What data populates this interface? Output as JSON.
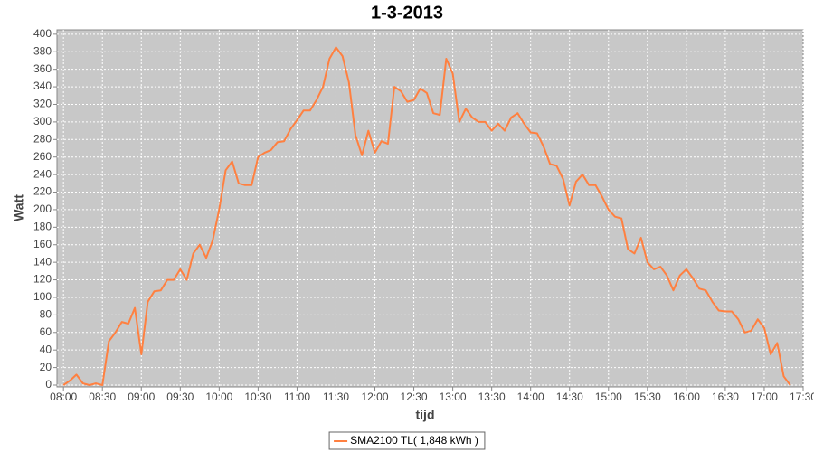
{
  "chart_data": {
    "type": "line",
    "title": "1-3-2013",
    "x_label": "tijd",
    "y_label": "Watt",
    "x": [
      "08:00",
      "08:05",
      "08:10",
      "08:15",
      "08:20",
      "08:25",
      "08:30",
      "08:35",
      "08:40",
      "08:45",
      "08:50",
      "08:55",
      "09:00",
      "09:05",
      "09:10",
      "09:15",
      "09:20",
      "09:25",
      "09:30",
      "09:35",
      "09:40",
      "09:45",
      "09:50",
      "09:55",
      "10:00",
      "10:05",
      "10:10",
      "10:15",
      "10:20",
      "10:25",
      "10:30",
      "10:35",
      "10:40",
      "10:45",
      "10:50",
      "10:55",
      "11:00",
      "11:05",
      "11:10",
      "11:15",
      "11:20",
      "11:25",
      "11:30",
      "11:35",
      "11:40",
      "11:45",
      "11:50",
      "11:55",
      "12:00",
      "12:05",
      "12:10",
      "12:15",
      "12:20",
      "12:25",
      "12:30",
      "12:35",
      "12:40",
      "12:45",
      "12:50",
      "12:55",
      "13:00",
      "13:05",
      "13:10",
      "13:15",
      "13:20",
      "13:25",
      "13:30",
      "13:35",
      "13:40",
      "13:45",
      "13:50",
      "13:55",
      "14:00",
      "14:05",
      "14:10",
      "14:15",
      "14:20",
      "14:25",
      "14:30",
      "14:35",
      "14:40",
      "14:45",
      "14:50",
      "14:55",
      "15:00",
      "15:05",
      "15:10",
      "15:15",
      "15:20",
      "15:25",
      "15:30",
      "15:35",
      "15:40",
      "15:45",
      "15:50",
      "15:55",
      "16:00",
      "16:05",
      "16:10",
      "16:15",
      "16:20",
      "16:25",
      "16:30",
      "16:35",
      "16:40",
      "16:45",
      "16:50",
      "16:55",
      "17:00",
      "17:05",
      "17:10",
      "17:15",
      "17:20"
    ],
    "series": [
      {
        "name": "SMA2100 TL( 1,848 kWh )",
        "color": "#ff8040",
        "values": [
          0,
          5,
          12,
          2,
          0,
          2,
          0,
          50,
          60,
          72,
          70,
          88,
          35,
          95,
          107,
          108,
          120,
          120,
          132,
          120,
          150,
          160,
          145,
          165,
          200,
          245,
          255,
          230,
          228,
          228,
          260,
          265,
          268,
          277,
          278,
          292,
          302,
          313,
          313,
          325,
          340,
          372,
          385,
          375,
          345,
          285,
          262,
          290,
          265,
          278,
          275,
          340,
          335,
          323,
          325,
          338,
          333,
          310,
          308,
          372,
          355,
          300,
          315,
          305,
          300,
          300,
          290,
          298,
          290,
          305,
          310,
          298,
          288,
          287,
          272,
          252,
          250,
          235,
          205,
          232,
          240,
          228,
          228,
          215,
          200,
          192,
          190,
          155,
          150,
          168,
          140,
          132,
          135,
          125,
          108,
          125,
          132,
          122,
          110,
          108,
          95,
          85,
          84,
          84,
          75,
          60,
          62,
          75,
          65,
          35,
          48,
          10,
          0
        ]
      }
    ],
    "xlim": [
      "07:55",
      "17:30"
    ],
    "xticks": [
      "08:00",
      "08:30",
      "09:00",
      "09:30",
      "10:00",
      "10:30",
      "11:00",
      "11:30",
      "12:00",
      "12:30",
      "13:00",
      "13:30",
      "14:00",
      "14:30",
      "15:00",
      "15:30",
      "16:00",
      "16:30",
      "17:00",
      "17:30"
    ],
    "ylim": [
      0,
      405
    ],
    "yticks": [
      0,
      20,
      40,
      60,
      80,
      100,
      120,
      140,
      160,
      180,
      200,
      220,
      240,
      260,
      280,
      300,
      320,
      340,
      360,
      380,
      400
    ],
    "grid": true,
    "legend": "bottom"
  }
}
